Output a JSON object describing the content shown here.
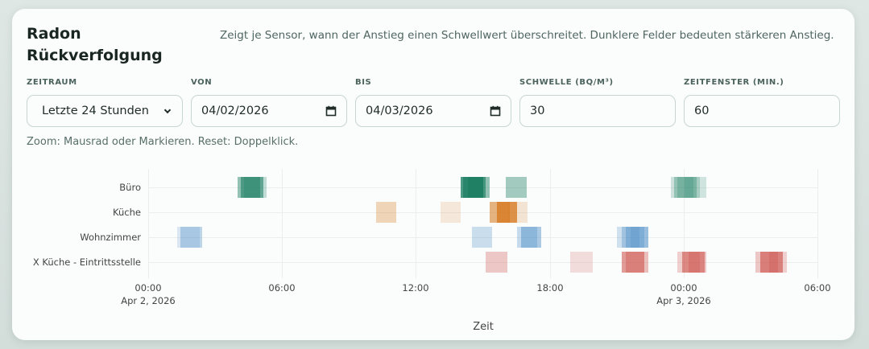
{
  "header": {
    "title": "Radon Rückverfolgung",
    "description": "Zeigt je Sensor, wann der Anstieg einen Schwellwert überschreitet. Dunklere Felder bedeuten stärkeren Anstieg."
  },
  "controls": {
    "zeitraum": {
      "label": "ZEITRAUM",
      "value": "Letzte 24 Stunden",
      "icon": "chevron-down-icon"
    },
    "von": {
      "label": "VON",
      "value": "04/02/2026",
      "icon": "calendar-icon"
    },
    "bis": {
      "label": "BIS",
      "value": "04/03/2026",
      "icon": "calendar-icon"
    },
    "schwelle": {
      "label": "SCHWELLE (BQ/M³)",
      "value": "30"
    },
    "zeitfenster": {
      "label": "ZEITFENSTER (MIN.)",
      "value": "60"
    }
  },
  "hint": "Zoom: Mausrad oder Markieren. Reset: Doppelklick.",
  "colors": {
    "Büro": "#137a5c",
    "Küche": "#d4761a",
    "Wohnzimmer": "#4a8cc6",
    "X Küche - Eintrittsstelle": "#cc4c46",
    "grid": "#ebeeed",
    "card": "#fbfcfc",
    "background": "#d9e2df"
  },
  "chart_data": {
    "type": "heatmap",
    "title": "",
    "xlabel": "Zeit",
    "ylabel": "",
    "x_range_hours_from_start": [
      0,
      30
    ],
    "x_ticks": [
      {
        "hour": 0,
        "label": "00:00",
        "sublabel": "Apr 2, 2026"
      },
      {
        "hour": 6,
        "label": "06:00",
        "sublabel": ""
      },
      {
        "hour": 12,
        "label": "12:00",
        "sublabel": ""
      },
      {
        "hour": 18,
        "label": "18:00",
        "sublabel": ""
      },
      {
        "hour": 24,
        "label": "00:00",
        "sublabel": "Apr 3, 2026"
      },
      {
        "hour": 30,
        "label": "06:00",
        "sublabel": ""
      }
    ],
    "categories": [
      "Büro",
      "Küche",
      "Wohnzimmer",
      "X Küche - Eintrittsstelle"
    ],
    "grid": true,
    "legend": "none",
    "series": [
      {
        "name": "Büro",
        "events": [
          {
            "start": 4.0,
            "end": 5.0,
            "intensity": 0.45
          },
          {
            "start": 4.15,
            "end": 5.15,
            "intensity": 0.55
          },
          {
            "start": 4.3,
            "end": 5.3,
            "intensity": 0.25
          },
          {
            "start": 14.0,
            "end": 15.0,
            "intensity": 0.75
          },
          {
            "start": 14.1,
            "end": 15.1,
            "intensity": 0.6
          },
          {
            "start": 14.3,
            "end": 15.3,
            "intensity": 0.45
          },
          {
            "start": 16.0,
            "end": 16.95,
            "intensity": 0.38
          },
          {
            "start": 23.4,
            "end": 24.4,
            "intensity": 0.2
          },
          {
            "start": 23.55,
            "end": 24.55,
            "intensity": 0.3
          },
          {
            "start": 23.7,
            "end": 24.7,
            "intensity": 0.22
          },
          {
            "start": 24.0,
            "end": 25.0,
            "intensity": 0.18
          }
        ]
      },
      {
        "name": "Küche",
        "events": [
          {
            "start": 10.2,
            "end": 11.1,
            "intensity": 0.3
          },
          {
            "start": 13.1,
            "end": 14.0,
            "intensity": 0.15
          },
          {
            "start": 15.3,
            "end": 16.2,
            "intensity": 0.55
          },
          {
            "start": 15.6,
            "end": 16.5,
            "intensity": 0.75
          },
          {
            "start": 16.1,
            "end": 17.0,
            "intensity": 0.18
          }
        ]
      },
      {
        "name": "Wohnzimmer",
        "events": [
          {
            "start": 1.3,
            "end": 2.3,
            "intensity": 0.18
          },
          {
            "start": 1.45,
            "end": 2.4,
            "intensity": 0.35
          },
          {
            "start": 14.5,
            "end": 15.4,
            "intensity": 0.28
          },
          {
            "start": 16.5,
            "end": 17.4,
            "intensity": 0.3
          },
          {
            "start": 16.7,
            "end": 17.6,
            "intensity": 0.45
          },
          {
            "start": 21.0,
            "end": 22.0,
            "intensity": 0.25
          },
          {
            "start": 21.2,
            "end": 22.2,
            "intensity": 0.35
          },
          {
            "start": 21.4,
            "end": 22.4,
            "intensity": 0.4
          },
          {
            "start": 21.6,
            "end": 22.4,
            "intensity": 0.25
          }
        ]
      },
      {
        "name": "X Küche - Eintrittsstelle",
        "events": [
          {
            "start": 15.1,
            "end": 16.1,
            "intensity": 0.3
          },
          {
            "start": 18.9,
            "end": 19.9,
            "intensity": 0.18
          },
          {
            "start": 21.2,
            "end": 22.2,
            "intensity": 0.55
          },
          {
            "start": 21.4,
            "end": 22.4,
            "intensity": 0.35
          },
          {
            "start": 23.7,
            "end": 24.7,
            "intensity": 0.25
          },
          {
            "start": 23.9,
            "end": 24.9,
            "intensity": 0.55
          },
          {
            "start": 24.2,
            "end": 25.0,
            "intensity": 0.3
          },
          {
            "start": 27.2,
            "end": 28.2,
            "intensity": 0.3
          },
          {
            "start": 27.4,
            "end": 28.4,
            "intensity": 0.6
          },
          {
            "start": 27.8,
            "end": 28.6,
            "intensity": 0.25
          }
        ]
      }
    ]
  }
}
